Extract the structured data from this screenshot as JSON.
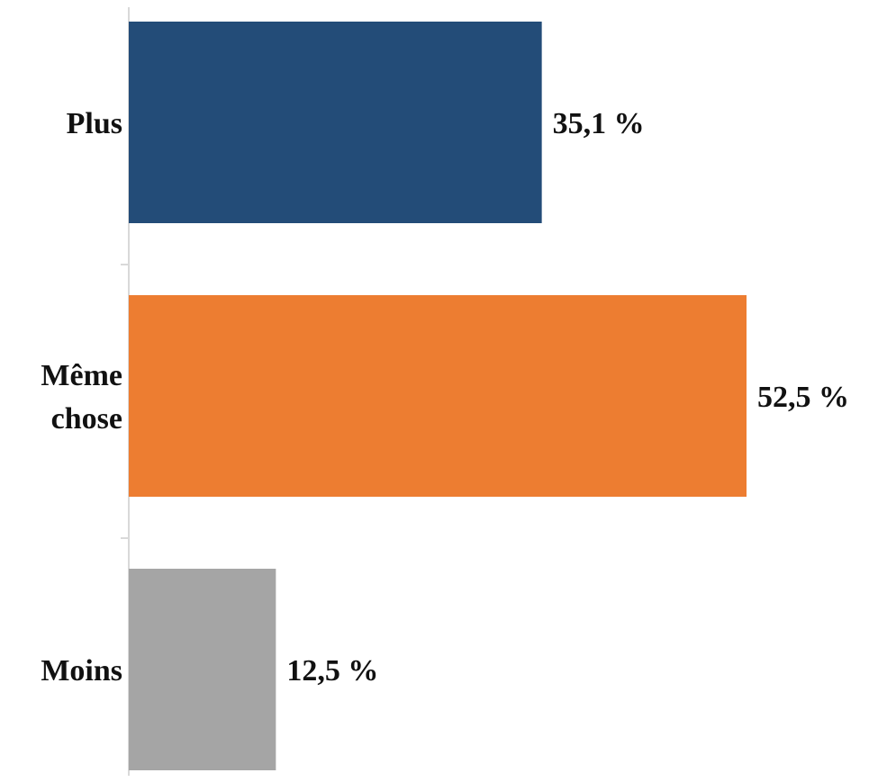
{
  "chart_data": {
    "type": "bar",
    "orientation": "horizontal",
    "categories": [
      [
        "Plus"
      ],
      [
        "Même",
        "chose"
      ],
      [
        "Moins"
      ]
    ],
    "values": [
      35.1,
      52.5,
      12.5
    ],
    "value_labels": [
      "35,1 %",
      "52,5 %",
      "12,5 %"
    ],
    "colors": [
      "#234c78",
      "#ed7d31",
      "#a5a5a5"
    ],
    "unit": "%",
    "xlim": [
      0,
      60
    ],
    "grid": false,
    "legend": "none",
    "title": "",
    "xlabel": "",
    "ylabel": ""
  }
}
